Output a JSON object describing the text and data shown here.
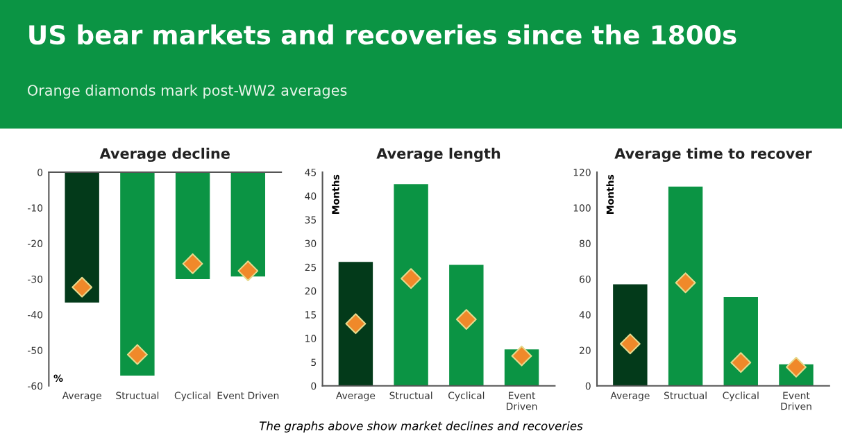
{
  "chart_data": [
    {
      "type": "bar",
      "title": "Average decline",
      "ylabel": "%",
      "categories": [
        "Average",
        "Structual",
        "Cyclical",
        "Event Driven"
      ],
      "ylim": [
        -60,
        0
      ],
      "yticks": [
        0,
        -10,
        -20,
        -30,
        -40,
        -50,
        -60
      ],
      "annotations": [
        "US bear markets and recoveries since the 1800s",
        "Orange diamonds mark post-WW2 averages"
      ],
      "series": [
        {
          "colors": [
            "#033a1a",
            "#0b9444",
            "#0b9444",
            "#0b9444"
          ],
          "values": [
            -36.6,
            -57.1,
            -30.0,
            -29.3
          ]
        },
        {
          "type": "scatter",
          "marker": "diamond",
          "color": "#f0892a",
          "x": [
            "Average",
            "Structual",
            "Cyclical",
            "Event Driven"
          ],
          "values": [
            -32.3,
            -51.2,
            -25.7,
            -27.7
          ]
        }
      ]
    },
    {
      "type": "bar",
      "title": "Average length",
      "ylabel": "Months",
      "categories": [
        "Average",
        "Structual",
        "Cyclical",
        "Event\nDriven"
      ],
      "ylim": [
        0,
        45
      ],
      "yticks": [
        0,
        5,
        10,
        15,
        20,
        25,
        30,
        35,
        40,
        45
      ],
      "series": [
        {
          "colors": [
            "#033a1a",
            "#0b9444",
            "#0b9444",
            "#0b9444"
          ],
          "values": [
            26.1,
            42.5,
            25.5,
            7.7
          ]
        },
        {
          "type": "scatter",
          "marker": "diamond",
          "color": "#f0892a",
          "x": [
            "Average",
            "Structual",
            "Cyclical",
            "Event\nDriven"
          ],
          "values": [
            13.1,
            22.6,
            14.0,
            6.3
          ]
        }
      ]
    },
    {
      "type": "bar",
      "title": "Average time to recover",
      "ylabel": "Months",
      "categories": [
        "Average",
        "Structual",
        "Cyclical",
        "Event\nDriven"
      ],
      "ylim": [
        0,
        120
      ],
      "yticks": [
        0,
        20,
        40,
        60,
        80,
        100,
        120
      ],
      "annotations": [
        "The graphs above show market declines and recoveries"
      ],
      "series": [
        {
          "colors": [
            "#033a1a",
            "#0b9444",
            "#0b9444",
            "#0b9444"
          ],
          "values": [
            57.0,
            111.9,
            49.8,
            12.1
          ]
        },
        {
          "type": "scatter",
          "marker": "diamond",
          "color": "#f0892a",
          "x": [
            "Average",
            "Structual",
            "Cyclical",
            "Event\nDriven"
          ],
          "values": [
            23.6,
            57.9,
            13.1,
            10.5
          ]
        }
      ]
    }
  ]
}
